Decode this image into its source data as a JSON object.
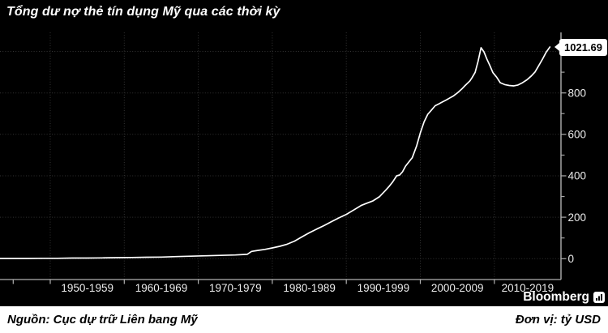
{
  "title": "Tổng dư nợ thẻ tín dụng Mỹ qua các thời kỳ",
  "footer": {
    "source": "Nguồn: Cục dự trữ Liên bang Mỹ",
    "unit": "Đơn vị: tỷ USD",
    "brand": "Bloomberg"
  },
  "colors": {
    "background": "#000000",
    "line": "#ffffff",
    "grid": "#333333",
    "axis": "#b0b0b0",
    "tick_label": "#ebebeb",
    "callout_bg": "#ffffff",
    "callout_text": "#000000",
    "footer_bg": "#ffffff",
    "footer_text": "#000000"
  },
  "chart_data": {
    "type": "line",
    "title": "Tổng dư nợ thẻ tín dụng Mỹ qua các thời kỳ",
    "ylabel": "tỷ USD",
    "ylim": [
      0,
      1100
    ],
    "grid": "dotted",
    "legend": "none",
    "last_value_label": "1021.69",
    "last_value": 1021.69,
    "y_ticks": [
      0,
      200,
      400,
      600,
      800,
      1000
    ],
    "y_minor_ticks": [
      100,
      300,
      500,
      700,
      900
    ],
    "x_tick_years": [
      1945,
      1950,
      1960,
      1970,
      1980,
      1990,
      2000,
      2010
    ],
    "x_gridline_years": [
      1950,
      1960,
      1970,
      1980,
      1990,
      2000,
      2010
    ],
    "x_labels": [
      {
        "label": "1950-1959",
        "from": 1950,
        "to": 1960
      },
      {
        "label": "1960-1969",
        "from": 1960,
        "to": 1970
      },
      {
        "label": "1970-1979",
        "from": 1970,
        "to": 1980
      },
      {
        "label": "1980-1989",
        "from": 1980,
        "to": 1990
      },
      {
        "label": "1990-1999",
        "from": 1990,
        "to": 2000
      },
      {
        "label": "2000-2009",
        "from": 2000,
        "to": 2010
      },
      {
        "label": "2010-2019",
        "from": 2010,
        "to": 2019
      }
    ],
    "series": [
      {
        "name": "Tổng dư nợ thẻ tín dụng Mỹ (tỷ USD)",
        "points": [
          [
            1943,
            1
          ],
          [
            1945,
            1
          ],
          [
            1947,
            1
          ],
          [
            1949,
            2
          ],
          [
            1951,
            2
          ],
          [
            1953,
            3
          ],
          [
            1955,
            3
          ],
          [
            1957,
            4
          ],
          [
            1959,
            5
          ],
          [
            1961,
            6
          ],
          [
            1963,
            7
          ],
          [
            1965,
            8
          ],
          [
            1967,
            10
          ],
          [
            1969,
            12
          ],
          [
            1971,
            14
          ],
          [
            1973,
            16
          ],
          [
            1975,
            18
          ],
          [
            1976.6,
            21
          ],
          [
            1977.2,
            35
          ],
          [
            1978,
            40
          ],
          [
            1979,
            45
          ],
          [
            1980,
            52
          ],
          [
            1981,
            60
          ],
          [
            1982,
            70
          ],
          [
            1983,
            85
          ],
          [
            1984,
            105
          ],
          [
            1985,
            125
          ],
          [
            1986,
            143
          ],
          [
            1987,
            160
          ],
          [
            1988,
            179
          ],
          [
            1989,
            197
          ],
          [
            1990,
            214
          ],
          [
            1991,
            235
          ],
          [
            1992,
            257
          ],
          [
            1992.8,
            268
          ],
          [
            1993.6,
            279
          ],
          [
            1994.5,
            300
          ],
          [
            1995.3,
            330
          ],
          [
            1995.8,
            350
          ],
          [
            1996.3,
            372
          ],
          [
            1996.8,
            400
          ],
          [
            1997.2,
            404
          ],
          [
            1997.6,
            420
          ],
          [
            1998,
            447
          ],
          [
            1998.9,
            487
          ],
          [
            1999.5,
            545
          ],
          [
            2000,
            607
          ],
          [
            2000.5,
            660
          ],
          [
            2001,
            697
          ],
          [
            2001.4,
            713
          ],
          [
            2002,
            738
          ],
          [
            2002.5,
            747
          ],
          [
            2003,
            757
          ],
          [
            2003.5,
            766
          ],
          [
            2004,
            776
          ],
          [
            2004.5,
            786
          ],
          [
            2005,
            800
          ],
          [
            2005.6,
            819
          ],
          [
            2006,
            834
          ],
          [
            2006.7,
            858
          ],
          [
            2007,
            874
          ],
          [
            2007.4,
            899
          ],
          [
            2007.8,
            952
          ],
          [
            2008.2,
            1018
          ],
          [
            2008.6,
            998
          ],
          [
            2009,
            962
          ],
          [
            2009.4,
            932
          ],
          [
            2009.8,
            898
          ],
          [
            2010.3,
            876
          ],
          [
            2010.8,
            849
          ],
          [
            2011.4,
            840
          ],
          [
            2012,
            836
          ],
          [
            2012.6,
            834
          ],
          [
            2013.2,
            838
          ],
          [
            2013.8,
            849
          ],
          [
            2014.4,
            863
          ],
          [
            2015,
            882
          ],
          [
            2015.5,
            901
          ],
          [
            2016,
            932
          ],
          [
            2016.5,
            963
          ],
          [
            2017,
            996
          ],
          [
            2017.5,
            1021.69
          ]
        ]
      }
    ]
  }
}
